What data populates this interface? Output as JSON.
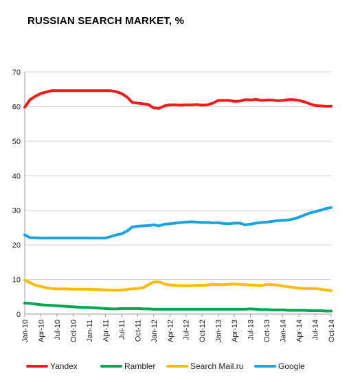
{
  "chart_data": {
    "type": "line",
    "title": "RUSSIAN SEARCH MARKET, %",
    "xlabel": "",
    "ylabel": "",
    "ylim": [
      0,
      70
    ],
    "yticks": [
      0,
      10,
      20,
      30,
      40,
      50,
      60,
      70
    ],
    "grid": "horizontal",
    "legend": "bottom",
    "categories": [
      "Jan-10",
      "Feb-10",
      "Mar-10",
      "Apr-10",
      "May-10",
      "Jun-10",
      "Jul-10",
      "Aug-10",
      "Sep-10",
      "Oct-10",
      "Nov-10",
      "Dec-10",
      "Jan-11",
      "Feb-11",
      "Mar-11",
      "Apr-11",
      "May-11",
      "Jun-11",
      "Jul-11",
      "Aug-11",
      "Sep-11",
      "Oct-11",
      "Nov-11",
      "Dec-11",
      "Jan-12",
      "Feb-12",
      "Mar-12",
      "Apr-12",
      "May-12",
      "Jun-12",
      "Jul-12",
      "Aug-12",
      "Sep-12",
      "Oct-12",
      "Nov-12",
      "Dec-12",
      "Jan-13",
      "Feb-13",
      "Mar-13",
      "Apr-13",
      "May-13",
      "Jun-13",
      "Jul-13",
      "Aug-13",
      "Sep-13",
      "Oct-13",
      "Nov-13",
      "Dec-13",
      "Jan-14",
      "Feb-14",
      "Mar-14",
      "Apr-14",
      "May-14",
      "Jun-14",
      "Jul-14",
      "Aug-14",
      "Sep-14",
      "Oct-14"
    ],
    "tick_labels": [
      "Jan-10",
      "Apr-10",
      "Jul-10",
      "Oct-10",
      "Jan-11",
      "Apr-11",
      "Jul-11",
      "Oct-11",
      "Jan-12",
      "Apr-12",
      "Jul-12",
      "Oct-12",
      "Jan-13",
      "Apr-13",
      "Jul-13",
      "Oct-13",
      "Jan-14",
      "Apr-14",
      "Jul-14",
      "Oct-14"
    ],
    "series": [
      {
        "name": "Yandex",
        "color": "#ee1c1c",
        "values": [
          59.8,
          62.0,
          63.0,
          63.8,
          64.2,
          64.6,
          64.6,
          64.6,
          64.6,
          64.6,
          64.6,
          64.6,
          64.6,
          64.6,
          64.6,
          64.6,
          64.6,
          64.3,
          63.8,
          62.8,
          61.2,
          61.0,
          60.8,
          60.6,
          59.6,
          59.5,
          60.2,
          60.5,
          60.5,
          60.4,
          60.5,
          60.5,
          60.6,
          60.4,
          60.5,
          61.0,
          61.8,
          61.8,
          61.8,
          61.5,
          61.6,
          62.0,
          61.9,
          62.1,
          61.8,
          61.9,
          61.9,
          61.7,
          61.8,
          62.0,
          62.0,
          61.8,
          61.4,
          60.8,
          60.3,
          60.2,
          60.1,
          60.1
        ]
      },
      {
        "name": "Rambler",
        "color": "#00a650",
        "values": [
          3.2,
          3.1,
          2.9,
          2.7,
          2.6,
          2.5,
          2.4,
          2.3,
          2.2,
          2.1,
          2.0,
          1.9,
          1.9,
          1.8,
          1.7,
          1.6,
          1.5,
          1.5,
          1.6,
          1.6,
          1.6,
          1.6,
          1.5,
          1.5,
          1.4,
          1.4,
          1.4,
          1.4,
          1.4,
          1.4,
          1.4,
          1.4,
          1.4,
          1.4,
          1.4,
          1.4,
          1.4,
          1.4,
          1.4,
          1.4,
          1.4,
          1.4,
          1.5,
          1.4,
          1.3,
          1.3,
          1.2,
          1.2,
          1.2,
          1.1,
          1.1,
          1.1,
          1.1,
          1.0,
          1.0,
          1.0,
          0.9,
          0.9
        ]
      },
      {
        "name": "Search Mail.ru",
        "color": "#ffbb00",
        "values": [
          9.8,
          9.1,
          8.3,
          8.0,
          7.6,
          7.4,
          7.3,
          7.3,
          7.3,
          7.2,
          7.2,
          7.2,
          7.2,
          7.1,
          7.1,
          7.0,
          7.0,
          6.9,
          7.0,
          7.1,
          7.3,
          7.4,
          7.6,
          8.5,
          9.3,
          9.3,
          8.7,
          8.4,
          8.3,
          8.2,
          8.2,
          8.2,
          8.3,
          8.3,
          8.4,
          8.6,
          8.5,
          8.5,
          8.6,
          8.7,
          8.6,
          8.5,
          8.4,
          8.3,
          8.2,
          8.6,
          8.5,
          8.4,
          8.1,
          7.9,
          7.7,
          7.5,
          7.4,
          7.4,
          7.4,
          7.2,
          7.0,
          6.8
        ]
      },
      {
        "name": "Google",
        "color": "#1aa3e0",
        "values": [
          22.9,
          22.1,
          22.1,
          22.0,
          22.0,
          22.0,
          22.0,
          22.0,
          22.0,
          22.0,
          22.0,
          22.0,
          22.0,
          22.0,
          22.0,
          22.0,
          22.4,
          22.9,
          23.2,
          24.0,
          25.2,
          25.4,
          25.5,
          25.6,
          25.8,
          25.5,
          26.0,
          26.1,
          26.3,
          26.5,
          26.6,
          26.7,
          26.6,
          26.5,
          26.5,
          26.4,
          26.4,
          26.2,
          26.1,
          26.3,
          26.3,
          25.8,
          26.0,
          26.3,
          26.5,
          26.6,
          26.8,
          27.0,
          27.1,
          27.2,
          27.5,
          28.0,
          28.6,
          29.2,
          29.6,
          30.0,
          30.5,
          30.8
        ]
      }
    ]
  }
}
